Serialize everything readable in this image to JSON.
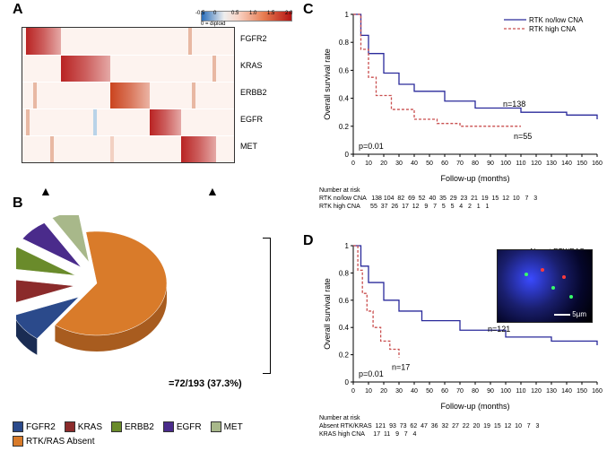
{
  "panels": {
    "A": "A",
    "B": "B",
    "C": "C",
    "D": "D"
  },
  "heatmap": {
    "rows": [
      "FGFR2",
      "KRAS",
      "ERBB2",
      "EGFR",
      "MET"
    ],
    "n_cols": 60,
    "diagonal_blocks": [
      {
        "row": 0,
        "from": 1,
        "to": 10,
        "color": "#b41414"
      },
      {
        "row": 1,
        "from": 11,
        "to": 24,
        "color": "#b41414"
      },
      {
        "row": 2,
        "from": 25,
        "to": 35,
        "color": "#c7370f"
      },
      {
        "row": 3,
        "from": 36,
        "to": 44,
        "color": "#b41414"
      },
      {
        "row": 4,
        "from": 45,
        "to": 54,
        "color": "#b41414"
      }
    ],
    "extra_cells": [
      {
        "row": 2,
        "col": 3,
        "color": "#e8b8a3"
      },
      {
        "row": 3,
        "col": 1,
        "color": "#e8b8a3"
      },
      {
        "row": 4,
        "col": 8,
        "color": "#e8b8a3"
      },
      {
        "row": 4,
        "col": 25,
        "color": "#f2d0c2"
      },
      {
        "row": 0,
        "col": 47,
        "color": "#e8b8a3"
      },
      {
        "row": 1,
        "col": 54,
        "color": "#e8b8a3"
      },
      {
        "row": 3,
        "col": 20,
        "color": "#b9d3e8"
      },
      {
        "row": 2,
        "col": 48,
        "color": "#e8b8a3"
      }
    ],
    "colorbar": {
      "ticks": [
        "-0.5",
        "0",
        "0.5",
        "1.0",
        "1.5",
        "2.0"
      ],
      "label": "0 = diploid"
    }
  },
  "pie": {
    "slices": [
      {
        "name": "RTK/RAS Absent",
        "value": 62.7,
        "color": "#d97b2a"
      },
      {
        "name": "FGFR2",
        "value": 9.0,
        "color": "#2b4a8b"
      },
      {
        "name": "KRAS",
        "value": 8.0,
        "color": "#8b2b2b"
      },
      {
        "name": "ERBB2",
        "value": 7.0,
        "color": "#6a8b2b"
      },
      {
        "name": "EGFR",
        "value": 7.0,
        "color": "#4a2b8b"
      },
      {
        "name": "MET",
        "value": 6.3,
        "color": "#a8b88a"
      }
    ],
    "annotation": "=72/193 (37.3%)",
    "legend": [
      "FGFR2",
      "KRAS",
      "ERBB2",
      "EGFR",
      "MET",
      "RTK/RAS Absent"
    ]
  },
  "survC": {
    "title_lines": [
      "RTK no/low CNA",
      "RTK high CNA"
    ],
    "ylabel": "Overall survival rate",
    "xlabel": "Follow-up (months)",
    "xlim": [
      0,
      160
    ],
    "ylim": [
      0,
      1
    ],
    "xtick_step": 10,
    "ytick_step": 0.2,
    "p": "p=0.01",
    "n_upper": "n=138",
    "n_lower": "n=55",
    "curve_upper": [
      [
        0,
        1
      ],
      [
        5,
        0.85
      ],
      [
        10,
        0.72
      ],
      [
        20,
        0.58
      ],
      [
        30,
        0.5
      ],
      [
        40,
        0.45
      ],
      [
        60,
        0.38
      ],
      [
        80,
        0.33
      ],
      [
        110,
        0.3
      ],
      [
        140,
        0.28
      ],
      [
        160,
        0.25
      ]
    ],
    "curve_lower": [
      [
        0,
        1
      ],
      [
        5,
        0.75
      ],
      [
        10,
        0.55
      ],
      [
        15,
        0.42
      ],
      [
        25,
        0.32
      ],
      [
        40,
        0.25
      ],
      [
        55,
        0.22
      ],
      [
        70,
        0.2
      ],
      [
        90,
        0.2
      ],
      [
        110,
        0.2
      ]
    ],
    "color_upper": "#2a2a9b",
    "color_lower": "#c94f4f",
    "risk_header": "Number at risk",
    "risk": [
      {
        "label": "RTK no/low CNA",
        "vals": [
          138,
          104,
          82,
          69,
          52,
          40,
          35,
          29,
          23,
          21,
          19,
          15,
          12,
          10,
          7,
          3
        ]
      },
      {
        "label": "RTK high CNA",
        "vals": [
          55,
          37,
          26,
          17,
          12,
          9,
          7,
          5,
          5,
          4,
          2,
          1,
          1
        ]
      }
    ]
  },
  "survD": {
    "title_lines": [
      "Absent RTK/RAS",
      "KRAS high CNA"
    ],
    "ylabel": "Overall survival rate",
    "xlabel": "Follow-up (months)",
    "xlim": [
      0,
      160
    ],
    "ylim": [
      0,
      1
    ],
    "xtick_step": 10,
    "ytick_step": 0.2,
    "p": "p=0.01",
    "n_upper": "n=121",
    "n_lower": "n=17",
    "curve_upper": [
      [
        0,
        1
      ],
      [
        5,
        0.85
      ],
      [
        10,
        0.73
      ],
      [
        20,
        0.6
      ],
      [
        30,
        0.52
      ],
      [
        45,
        0.45
      ],
      [
        70,
        0.38
      ],
      [
        100,
        0.33
      ],
      [
        130,
        0.3
      ],
      [
        160,
        0.27
      ]
    ],
    "curve_lower": [
      [
        0,
        1
      ],
      [
        3,
        0.82
      ],
      [
        6,
        0.65
      ],
      [
        9,
        0.52
      ],
      [
        13,
        0.4
      ],
      [
        18,
        0.3
      ],
      [
        24,
        0.24
      ],
      [
        30,
        0.18
      ]
    ],
    "color_upper": "#2a2a9b",
    "color_lower": "#c94f4f",
    "risk_header": "Number at risk",
    "risk": [
      {
        "label": "Absent RTK/KRAS",
        "vals": [
          121,
          93,
          73,
          62,
          47,
          36,
          32,
          27,
          22,
          20,
          19,
          15,
          12,
          10,
          7,
          3
        ]
      },
      {
        "label": "KRAS high CNA",
        "vals": [
          17,
          11,
          9,
          7,
          4
        ]
      }
    ],
    "inset_scale": "5µm"
  }
}
